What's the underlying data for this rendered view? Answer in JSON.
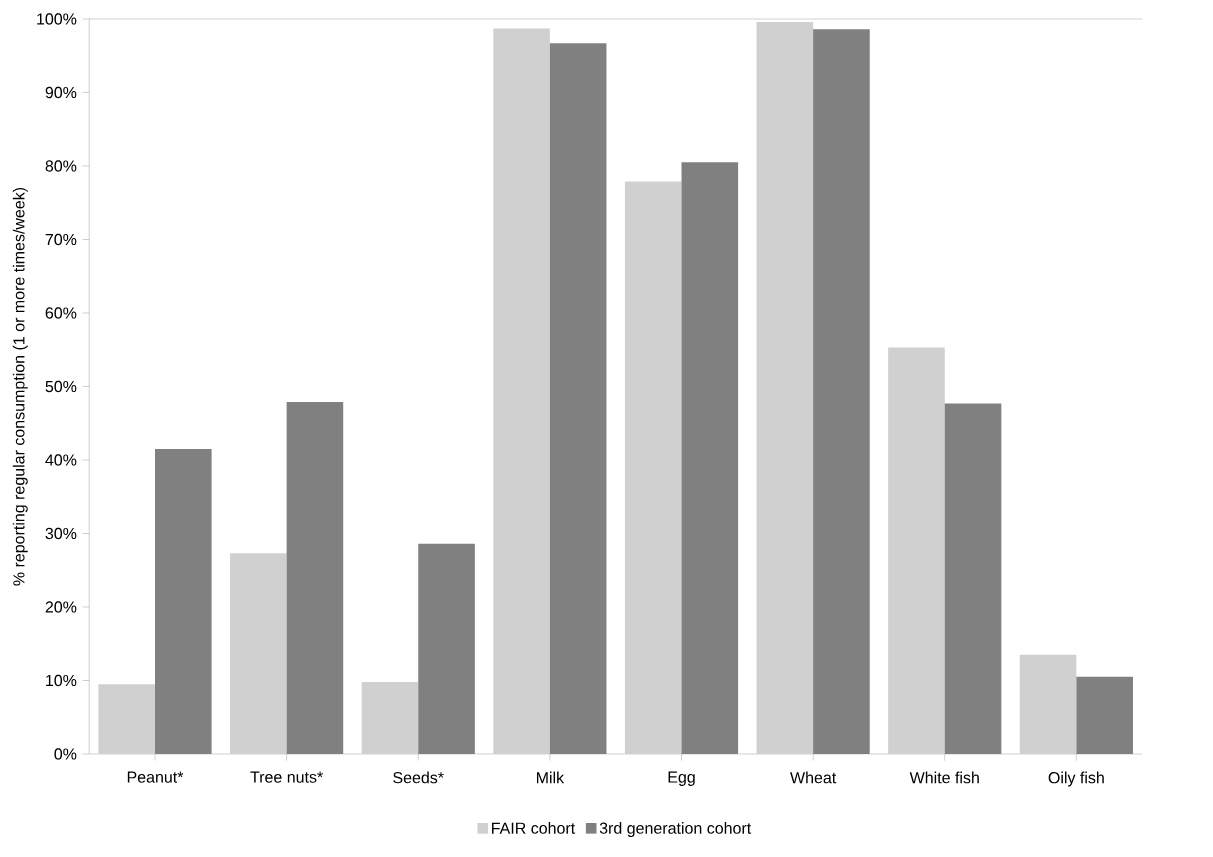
{
  "chart_data": {
    "type": "bar",
    "ylabel": "% reporting regular consumption (1 or more times/week)",
    "categories": [
      "Peanut*",
      "Tree nuts*",
      "Seeds*",
      "Milk",
      "Egg",
      "Wheat",
      "White fish",
      "Oily fish"
    ],
    "series": [
      {
        "name": "FAIR cohort",
        "color": "#d0d0d0",
        "values": [
          9.5,
          27.3,
          9.8,
          98.7,
          77.9,
          99.6,
          55.3,
          13.5
        ]
      },
      {
        "name": "3rd generation cohort",
        "color": "#808080",
        "values": [
          41.5,
          47.9,
          28.6,
          96.7,
          80.5,
          98.6,
          47.7,
          10.5
        ]
      }
    ],
    "ylim": [
      0,
      100
    ],
    "yticks": [
      {
        "value": 0,
        "label": "0%"
      },
      {
        "value": 10,
        "label": "10%"
      },
      {
        "value": 20,
        "label": "20%"
      },
      {
        "value": 30,
        "label": "30%"
      },
      {
        "value": 40,
        "label": "40%"
      },
      {
        "value": 50,
        "label": "50%"
      },
      {
        "value": 60,
        "label": "60%"
      },
      {
        "value": 70,
        "label": "70%"
      },
      {
        "value": 80,
        "label": "80%"
      },
      {
        "value": 90,
        "label": "90%"
      },
      {
        "value": 100,
        "label": "100%"
      }
    ],
    "legend": "bottom",
    "grid": false
  }
}
